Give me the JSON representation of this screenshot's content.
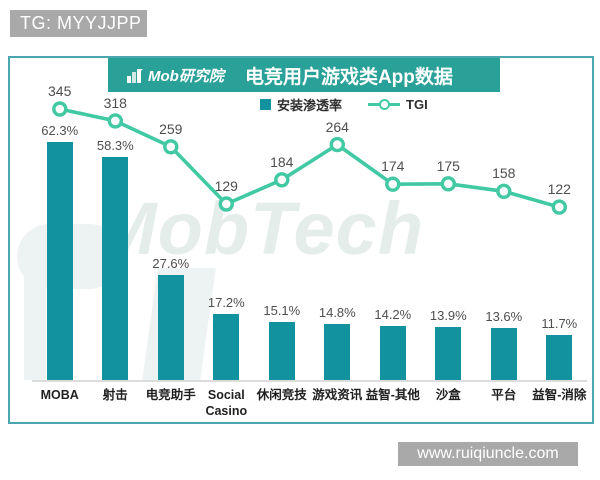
{
  "overlays": {
    "tg_badge": "TG: MYYJJPP",
    "url_badge": "www.ruiqiuncle.com"
  },
  "header": {
    "logo_text": "Mob研究院",
    "title": "电竞用户游戏类App数据"
  },
  "legend": {
    "bar_label": "安装渗透率",
    "line_label": "TGI"
  },
  "watermark": "MobTech",
  "colors": {
    "bar": "#12929e",
    "line": "#40c9a2",
    "banner": "#2aa198",
    "card_border": "#4ba6ad",
    "badge_gray": "#a9a9a9",
    "watermark": "#e5edeb",
    "axis": "#dcdcdc",
    "value_label": "#4e4e4e",
    "category_label": "#1f1f1f"
  },
  "chart_data": {
    "type": "bar",
    "subtype": "bar+line combo",
    "title": "电竞用户游戏类App数据",
    "categories": [
      "MOBA",
      "射击",
      "电竞助手",
      "Social Casino",
      "休闲竞技",
      "游戏资讯",
      "益智-其他",
      "沙盒",
      "平台",
      "益智-消除"
    ],
    "series": [
      {
        "name": "安装渗透率",
        "type": "bar",
        "unit": "%",
        "values": [
          62.3,
          58.3,
          27.6,
          17.2,
          15.1,
          14.8,
          14.2,
          13.9,
          13.6,
          11.7
        ]
      },
      {
        "name": "TGI",
        "type": "line",
        "unit": "",
        "values": [
          345,
          318,
          259,
          129,
          184,
          264,
          174,
          175,
          158,
          122
        ]
      }
    ],
    "xlabel": "",
    "ylabel": "",
    "grid": false,
    "legend_position": "top",
    "data_labels": true
  }
}
